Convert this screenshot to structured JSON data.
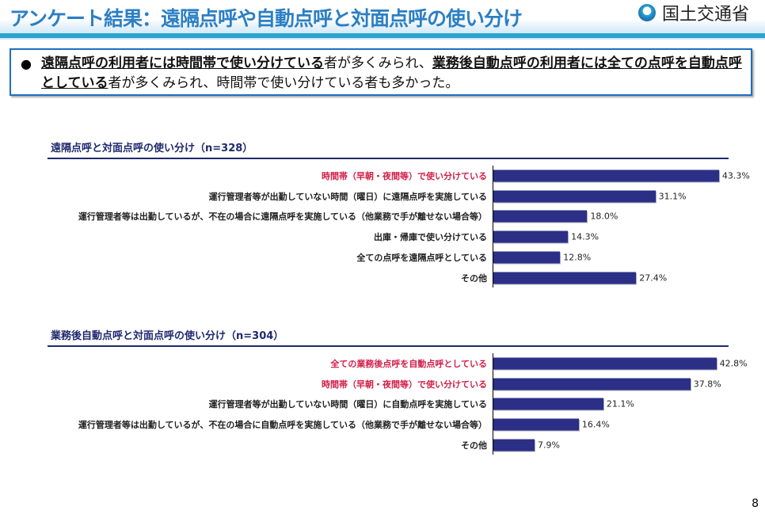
{
  "header": {
    "title": "アンケート結果：遠隔点呼や自動点呼と対面点呼の使い分け",
    "logo": "国土交通省"
  },
  "summary": {
    "bullet": "●",
    "p1": "遠隔点呼の利用者には時間帯で使い分けている",
    "p2": "者が多くみられ、",
    "p3": "業務後自動点呼の利用者には全ての点呼を自動点呼としている",
    "p4": "者が多くみられ、時間帯で使い分けている者も多かった。"
  },
  "chart_data": [
    {
      "type": "bar",
      "orientation": "horizontal",
      "title": "遠隔点呼と対面点呼の使い分け（n=328）",
      "unit": "%",
      "xlim": [
        0,
        50
      ],
      "categories": [
        "時間帯（早朝・夜間等）で使い分けている",
        "運行管理者等が出勤していない時間（曜日）に遠隔点呼を実施している",
        "運行管理者等は出勤しているが、不在の場合に遠隔点呼を実施している（他業務で手が離せない場合等）",
        "出庫・帰庫で使い分けている",
        "全ての点呼を遠隔点呼としている",
        "その他"
      ],
      "values": [
        43.3,
        31.1,
        18.0,
        14.3,
        12.8,
        27.4
      ],
      "labels": [
        "43.3%",
        "31.1%",
        "18.0%",
        "14.3%",
        "12.8%",
        "27.4%"
      ],
      "highlight": [
        true,
        false,
        false,
        false,
        false,
        false
      ]
    },
    {
      "type": "bar",
      "orientation": "horizontal",
      "title": "業務後自動点呼と対面点呼の使い分け（n=304）",
      "unit": "%",
      "xlim": [
        0,
        50
      ],
      "categories": [
        "全ての業務後点呼を自動点呼としている",
        "時間帯（早朝・夜間等）で使い分けている",
        "運行管理者等が出勤していない時間（曜日）に自動点呼を実施している",
        "運行管理者等は出勤しているが、不在の場合に自動点呼を実施している（他業務で手が離せない場合等）",
        "その他"
      ],
      "values": [
        42.8,
        37.8,
        21.1,
        16.4,
        7.9
      ],
      "labels": [
        "42.8%",
        "37.8%",
        "21.1%",
        "16.4%",
        "7.9%"
      ],
      "highlight": [
        true,
        true,
        false,
        false,
        false
      ]
    }
  ],
  "page": "8",
  "colors": {
    "bar": "#2b2f86",
    "highlight": "#d0204a",
    "title": "#2c7fc4"
  }
}
